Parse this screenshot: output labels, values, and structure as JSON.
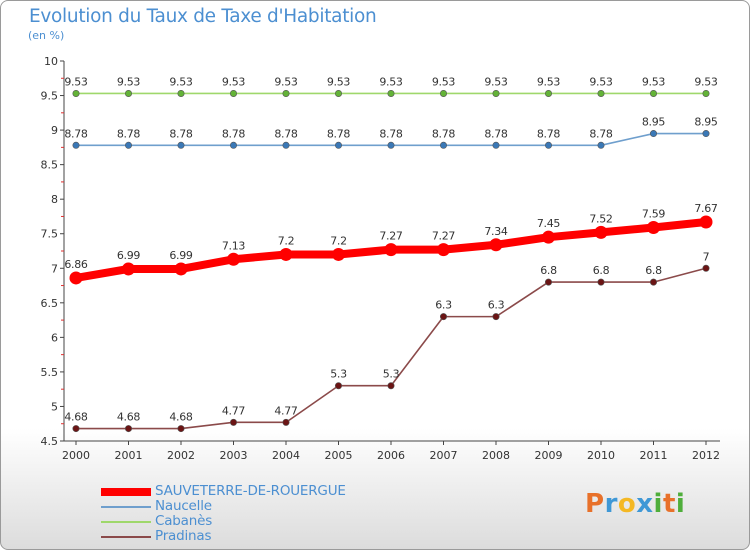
{
  "title": "Evolution du Taux de Taxe d'Habitation",
  "subtitle": "(en %)",
  "logo": {
    "text": "Proxiti",
    "colors": [
      "#e8712a",
      "#3f98d6",
      "#f4b824",
      "#3f98d6",
      "#4fae3b",
      "#e8712a",
      "#4fae3b"
    ]
  },
  "chart_data": {
    "type": "line",
    "title": "Evolution du Taux de Taxe d'Habitation",
    "ylabel": "(en %)",
    "xlabel": "",
    "ylim": [
      4.5,
      10
    ],
    "yticks": [
      "4.5",
      "5",
      "5.5",
      "6",
      "6.5",
      "7",
      "7.5",
      "8",
      "8.5",
      "9",
      "9.5",
      "10"
    ],
    "grid": false,
    "categories": [
      "2000",
      "2001",
      "2002",
      "2003",
      "2004",
      "2005",
      "2006",
      "2007",
      "2008",
      "2009",
      "2010",
      "2011",
      "2012"
    ],
    "series": [
      {
        "name": "SAUVETERRE-DE-ROUERGUE",
        "color": "#ff0000",
        "marker_color": "#ff0000",
        "weight": "heavy",
        "values": [
          6.86,
          6.99,
          6.99,
          7.13,
          7.2,
          7.2,
          7.27,
          7.27,
          7.34,
          7.45,
          7.52,
          7.59,
          7.67
        ],
        "labels": [
          "6.86",
          "6.99",
          "6.99",
          "7.13",
          "7.2",
          "7.2",
          "7.27",
          "7.27",
          "7.34",
          "7.45",
          "7.52",
          "7.59",
          "7.67"
        ]
      },
      {
        "name": "Naucelle",
        "color": "#6f9fcd",
        "marker_color": "#3a78b6",
        "weight": "light",
        "values": [
          8.78,
          8.78,
          8.78,
          8.78,
          8.78,
          8.78,
          8.78,
          8.78,
          8.78,
          8.78,
          8.78,
          8.95,
          8.95
        ],
        "labels": [
          "8.78",
          "8.78",
          "8.78",
          "8.78",
          "8.78",
          "8.78",
          "8.78",
          "8.78",
          "8.78",
          "8.78",
          "8.78",
          "8.95",
          "8.95"
        ]
      },
      {
        "name": "Cabanès",
        "color": "#9fd86b",
        "marker_color": "#63b337",
        "weight": "light",
        "values": [
          9.53,
          9.53,
          9.53,
          9.53,
          9.53,
          9.53,
          9.53,
          9.53,
          9.53,
          9.53,
          9.53,
          9.53,
          9.53
        ],
        "labels": [
          "9.53",
          "9.53",
          "9.53",
          "9.53",
          "9.53",
          "9.53",
          "9.53",
          "9.53",
          "9.53",
          "9.53",
          "9.53",
          "9.53",
          "9.53"
        ]
      },
      {
        "name": "Pradinas",
        "color": "#8b4a4a",
        "marker_color": "#6b1414",
        "weight": "light",
        "values": [
          4.68,
          4.68,
          4.68,
          4.77,
          4.77,
          5.3,
          5.3,
          6.3,
          6.3,
          6.8,
          6.8,
          6.8,
          7
        ],
        "labels": [
          "4.68",
          "4.68",
          "4.68",
          "4.77",
          "4.77",
          "5.3",
          "5.3",
          "6.3",
          "6.3",
          "6.8",
          "6.8",
          "6.8",
          "7"
        ]
      }
    ],
    "legend_position": "bottom-left"
  }
}
